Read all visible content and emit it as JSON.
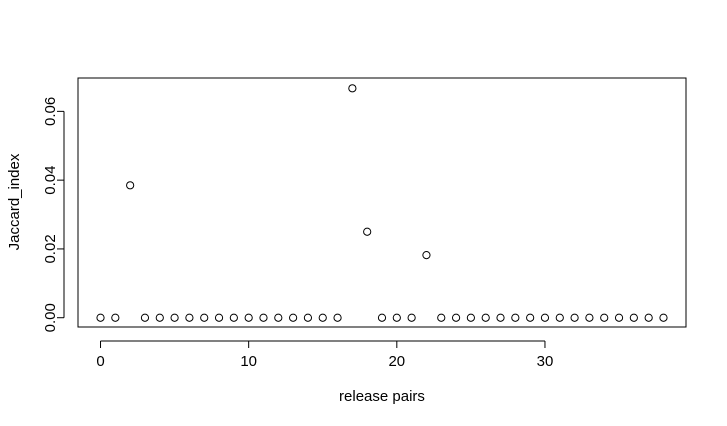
{
  "chart_data": {
    "type": "scatter",
    "xlabel": "release pairs",
    "ylabel": "Jaccard_index",
    "xlim": [
      -1.52,
      39.52
    ],
    "ylim": [
      -0.0027,
      0.0697
    ],
    "xticks": [
      0,
      10,
      20,
      30
    ],
    "yticks": [
      0.0,
      0.02,
      0.04,
      0.06
    ],
    "xtick_labels": [
      "0",
      "10",
      "20",
      "30"
    ],
    "ytick_labels": [
      "0.00",
      "0.02",
      "0.04",
      "0.06"
    ],
    "grid": false,
    "marker": "open-circle",
    "x": [
      0,
      1,
      2,
      3,
      4,
      5,
      6,
      7,
      8,
      9,
      10,
      11,
      12,
      13,
      14,
      15,
      16,
      17,
      18,
      19,
      20,
      21,
      22,
      23,
      24,
      25,
      26,
      27,
      28,
      29,
      30,
      31,
      32,
      33,
      34,
      35,
      36,
      37,
      38
    ],
    "y": [
      0,
      0,
      0.0385,
      0,
      0,
      0,
      0,
      0,
      0,
      0,
      0,
      0,
      0,
      0,
      0,
      0,
      0,
      0.0667,
      0.025,
      0,
      0,
      0,
      0.0182,
      0,
      0,
      0,
      0,
      0,
      0,
      0,
      0,
      0,
      0,
      0,
      0,
      0,
      0,
      0,
      0
    ]
  }
}
